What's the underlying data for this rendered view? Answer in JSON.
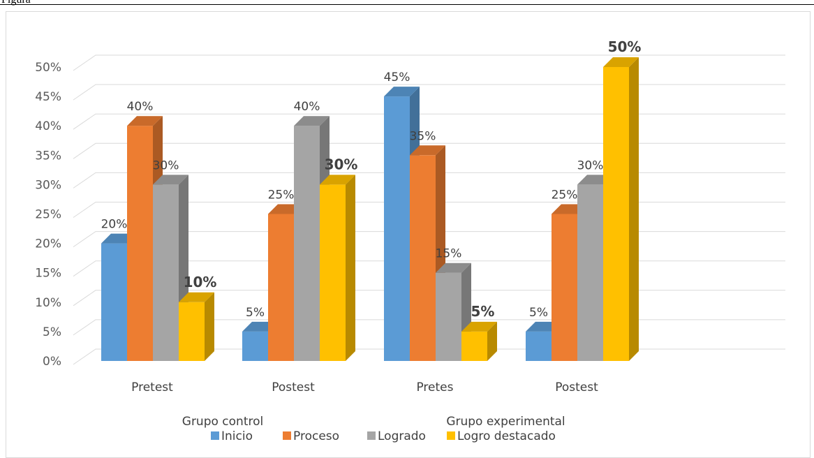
{
  "caption": "Figura",
  "chart_data": {
    "type": "bar",
    "categories": [
      "Pretest",
      "Postest",
      "Pretes",
      "Postest"
    ],
    "groups": [
      {
        "label": "Grupo control",
        "categories": [
          0,
          1
        ]
      },
      {
        "label": "Grupo experimental",
        "categories": [
          2,
          3
        ]
      }
    ],
    "series": [
      {
        "name": "Inicio",
        "color": "#5B9BD5",
        "values": [
          20,
          5,
          45,
          5
        ]
      },
      {
        "name": "Proceso",
        "color": "#ED7D31",
        "values": [
          40,
          25,
          35,
          25
        ]
      },
      {
        "name": "Logrado",
        "color": "#A5A5A5",
        "values": [
          30,
          40,
          15,
          30
        ]
      },
      {
        "name": "Logro destacado",
        "color": "#FFC000",
        "values": [
          10,
          30,
          5,
          50
        ]
      }
    ],
    "bold_labels_series": "Logro destacado",
    "ylim": [
      0,
      50
    ],
    "yticks": [
      "0%",
      "5%",
      "10%",
      "15%",
      "20%",
      "25%",
      "30%",
      "35%",
      "40%",
      "45%",
      "50%"
    ],
    "value_suffix": "%",
    "legend_position": "bottom",
    "grid": true,
    "style": "3d-clustered-column"
  }
}
